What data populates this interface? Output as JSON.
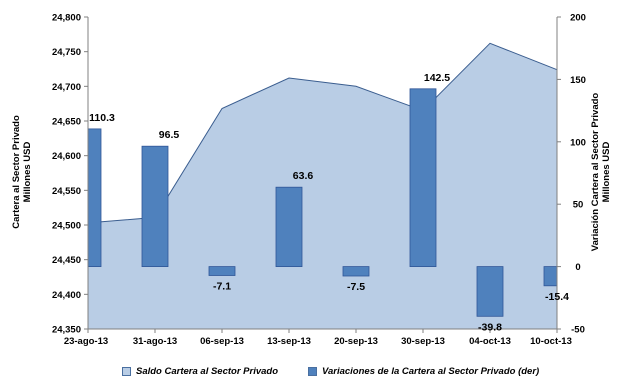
{
  "chart_data": {
    "type": "area+bar",
    "categories": [
      "23-ago-13",
      "31-ago-13",
      "06-sep-13",
      "13-sep-13",
      "20-sep-13",
      "30-sep-13",
      "04-oct-13",
      "10-oct-13"
    ],
    "series": [
      {
        "name": "Saldo Cartera al Sector Privado",
        "type": "area",
        "axis": "left",
        "color": "#b9cde5",
        "values": [
          24503,
          24511,
          24668,
          24712,
          24700,
          24665,
          24762,
          24724
        ]
      },
      {
        "name": "Variaciones de la Cartera al Sector Privado (der)",
        "type": "bar",
        "axis": "right",
        "color": "#4f81bd",
        "values": [
          110.3,
          96.5,
          -7.1,
          63.6,
          -7.5,
          142.5,
          -39.8,
          -15.4
        ],
        "labels": [
          "110.3",
          "96.5",
          "-7.1",
          "63.6",
          "-7.5",
          "142.5",
          "-39.8",
          "-15.4"
        ]
      }
    ],
    "y_left": {
      "label_lines": [
        "Cartera al Sector Privado",
        "Millones USD"
      ],
      "ylim": [
        24350,
        24800
      ],
      "ticks": [
        "24,350",
        "24,400",
        "24,450",
        "24,500",
        "24,550",
        "24,600",
        "24,650",
        "24,700",
        "24,750",
        "24,800"
      ]
    },
    "y_right": {
      "label_lines": [
        "Variación Cartera al Sector Privado",
        "Millones USD"
      ],
      "ylim": [
        -50,
        200
      ],
      "ticks": [
        "-50",
        "0",
        "50",
        "100",
        "150",
        "200"
      ]
    },
    "legend_placement": "bottom",
    "grid": false
  }
}
